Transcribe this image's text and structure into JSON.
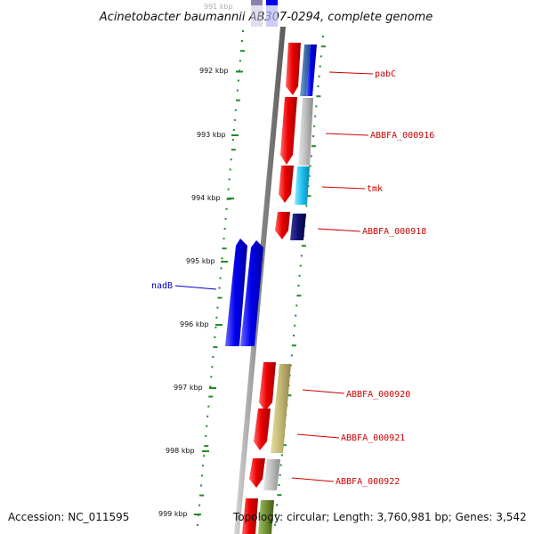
{
  "title": "Acinetobacter baumannii AB307-0294, complete genome",
  "footer": {
    "accession": "Accession: NC_011595",
    "stats": "Topology: circular; Length: 3,760,981 bp; Genes: 3,542"
  },
  "ruler": {
    "top_label": "991 kbp",
    "ticks": [
      "992 kbp",
      "993 kbp",
      "994 kbp",
      "995 kbp",
      "996 kbp",
      "997 kbp",
      "998 kbp",
      "999 kbp"
    ]
  },
  "labels": [
    {
      "text": "pabC",
      "color": "#cc0000"
    },
    {
      "text": "ABBFA_000916",
      "color": "#cc0000"
    },
    {
      "text": "tmk",
      "color": "#cc0000"
    },
    {
      "text": "ABBFA_000918",
      "color": "#cc0000"
    },
    {
      "text": "nadB",
      "color": "#0000cc"
    },
    {
      "text": "ABBFA_000920",
      "color": "#cc0000"
    },
    {
      "text": "ABBFA_000921",
      "color": "#cc0000"
    },
    {
      "text": "ABBFA_000922",
      "color": "#cc0000"
    }
  ],
  "colors": {
    "forward_strand": "#ee0000",
    "reverse_strand": "#0000ee",
    "backbone": "#888888",
    "gc_dots": "#228b22"
  }
}
